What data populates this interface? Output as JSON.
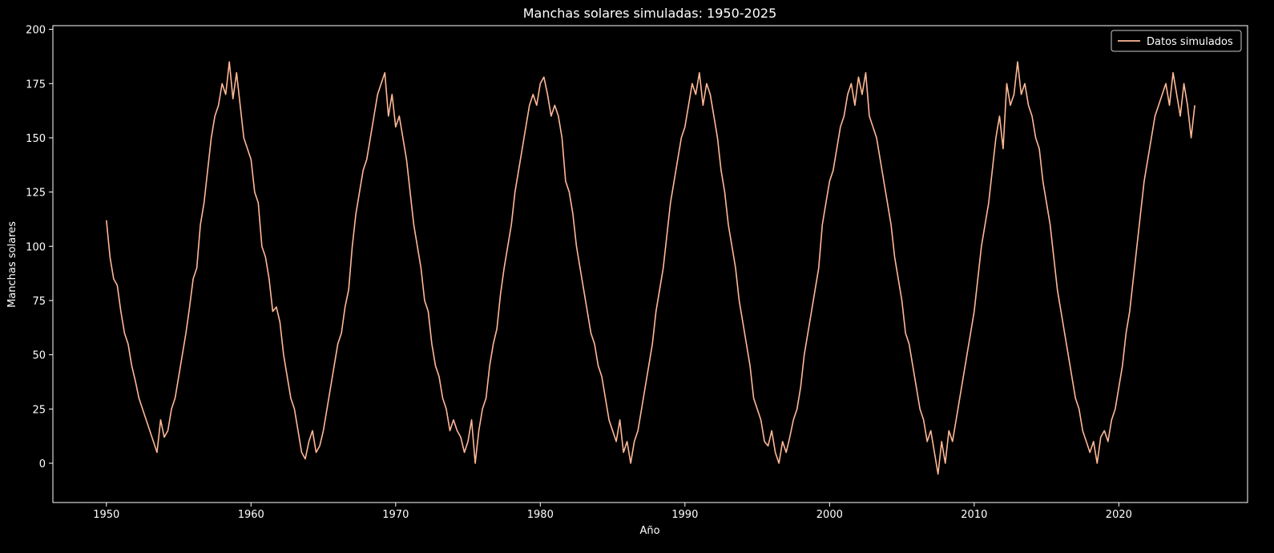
{
  "chart_data": {
    "type": "line",
    "title": "Manchas solares simuladas: 1950-2025",
    "x_label": "Año",
    "y_label": "Manchas solares",
    "x": [
      1950,
      1950.25,
      1950.5,
      1950.75,
      1951,
      1951.25,
      1951.5,
      1951.75,
      1952,
      1952.25,
      1952.5,
      1952.75,
      1953,
      1953.25,
      1953.5,
      1953.75,
      1954,
      1954.25,
      1954.5,
      1954.75,
      1955,
      1955.25,
      1955.5,
      1955.75,
      1956,
      1956.25,
      1956.5,
      1956.75,
      1957,
      1957.25,
      1957.5,
      1957.75,
      1958,
      1958.25,
      1958.5,
      1958.75,
      1959,
      1959.25,
      1959.5,
      1959.75,
      1960,
      1960.25,
      1960.5,
      1960.75,
      1961,
      1961.25,
      1961.5,
      1961.75,
      1962,
      1962.25,
      1962.5,
      1962.75,
      1963,
      1963.25,
      1963.5,
      1963.75,
      1964,
      1964.25,
      1964.5,
      1964.75,
      1965,
      1965.25,
      1965.5,
      1965.75,
      1966,
      1966.25,
      1966.5,
      1966.75,
      1967,
      1967.25,
      1967.5,
      1967.75,
      1968,
      1968.25,
      1968.5,
      1968.75,
      1969,
      1969.25,
      1969.5,
      1969.75,
      1970,
      1970.25,
      1970.5,
      1970.75,
      1971,
      1971.25,
      1971.5,
      1971.75,
      1972,
      1972.25,
      1972.5,
      1972.75,
      1973,
      1973.25,
      1973.5,
      1973.75,
      1974,
      1974.25,
      1974.5,
      1974.75,
      1975,
      1975.25,
      1975.5,
      1975.75,
      1976,
      1976.25,
      1976.5,
      1976.75,
      1977,
      1977.25,
      1977.5,
      1977.75,
      1978,
      1978.25,
      1978.5,
      1978.75,
      1979,
      1979.25,
      1979.5,
      1979.75,
      1980,
      1980.25,
      1980.5,
      1980.75,
      1981,
      1981.25,
      1981.5,
      1981.75,
      1982,
      1982.25,
      1982.5,
      1982.75,
      1983,
      1983.25,
      1983.5,
      1983.75,
      1984,
      1984.25,
      1984.5,
      1984.75,
      1985,
      1985.25,
      1985.5,
      1985.75,
      1986,
      1986.25,
      1986.5,
      1986.75,
      1987,
      1987.25,
      1987.5,
      1987.75,
      1988,
      1988.25,
      1988.5,
      1988.75,
      1989,
      1989.25,
      1989.5,
      1989.75,
      1990,
      1990.25,
      1990.5,
      1990.75,
      1991,
      1991.25,
      1991.5,
      1991.75,
      1992,
      1992.25,
      1992.5,
      1992.75,
      1993,
      1993.25,
      1993.5,
      1993.75,
      1994,
      1994.25,
      1994.5,
      1994.75,
      1995,
      1995.25,
      1995.5,
      1995.75,
      1996,
      1996.25,
      1996.5,
      1996.75,
      1997,
      1997.25,
      1997.5,
      1997.75,
      1998,
      1998.25,
      1998.5,
      1998.75,
      1999,
      1999.25,
      1999.5,
      1999.75,
      2000,
      2000.25,
      2000.5,
      2000.75,
      2001,
      2001.25,
      2001.5,
      2001.75,
      2002,
      2002.25,
      2002.5,
      2002.75,
      2003,
      2003.25,
      2003.5,
      2003.75,
      2004,
      2004.25,
      2004.5,
      2004.75,
      2005,
      2005.25,
      2005.5,
      2005.75,
      2006,
      2006.25,
      2006.5,
      2006.75,
      2007,
      2007.25,
      2007.5,
      2007.75,
      2008,
      2008.25,
      2008.5,
      2008.75,
      2009,
      2009.25,
      2009.5,
      2009.75,
      2010,
      2010.25,
      2010.5,
      2010.75,
      2011,
      2011.25,
      2011.5,
      2011.75,
      2012,
      2012.25,
      2012.5,
      2012.75,
      2013,
      2013.25,
      2013.5,
      2013.75,
      2014,
      2014.25,
      2014.5,
      2014.75,
      2015,
      2015.25,
      2015.5,
      2015.75,
      2016,
      2016.25,
      2016.5,
      2016.75,
      2017,
      2017.25,
      2017.5,
      2017.75,
      2018,
      2018.25,
      2018.5,
      2018.75,
      2019,
      2019.25,
      2019.5,
      2019.75,
      2020,
      2020.25,
      2020.5,
      2020.75,
      2021,
      2021.25,
      2021.5,
      2021.75,
      2022,
      2022.25,
      2022.5,
      2022.75,
      2023,
      2023.25,
      2023.5,
      2023.75,
      2024,
      2024.25,
      2024.5,
      2024.75,
      2025,
      2025.25
    ],
    "series": [
      {
        "name": "Datos simulados",
        "color": "#ffb896",
        "values": [
          112,
          95,
          85,
          82,
          70,
          60,
          55,
          45,
          38,
          30,
          25,
          20,
          15,
          10,
          5,
          20,
          12,
          15,
          25,
          30,
          40,
          50,
          60,
          72,
          85,
          90,
          110,
          120,
          135,
          150,
          160,
          165,
          175,
          170,
          185,
          168,
          180,
          165,
          150,
          145,
          140,
          125,
          120,
          100,
          95,
          85,
          70,
          72,
          65,
          50,
          40,
          30,
          25,
          15,
          5,
          2,
          10,
          15,
          5,
          8,
          15,
          25,
          35,
          45,
          55,
          60,
          72,
          80,
          100,
          115,
          125,
          135,
          140,
          150,
          160,
          170,
          175,
          180,
          160,
          170,
          155,
          160,
          150,
          140,
          125,
          110,
          100,
          90,
          75,
          70,
          55,
          45,
          40,
          30,
          25,
          15,
          20,
          15,
          12,
          5,
          10,
          20,
          0,
          15,
          25,
          30,
          45,
          55,
          62,
          78,
          90,
          100,
          110,
          125,
          135,
          145,
          155,
          165,
          170,
          165,
          175,
          178,
          170,
          160,
          165,
          160,
          150,
          130,
          125,
          115,
          100,
          90,
          80,
          70,
          60,
          55,
          45,
          40,
          30,
          20,
          15,
          10,
          20,
          5,
          10,
          0,
          10,
          15,
          25,
          35,
          45,
          55,
          70,
          80,
          90,
          105,
          120,
          130,
          140,
          150,
          155,
          165,
          175,
          170,
          180,
          165,
          175,
          170,
          160,
          150,
          135,
          125,
          110,
          100,
          90,
          75,
          65,
          55,
          45,
          30,
          25,
          20,
          10,
          8,
          15,
          5,
          0,
          10,
          5,
          12,
          20,
          25,
          35,
          50,
          60,
          70,
          80,
          90,
          110,
          120,
          130,
          135,
          145,
          155,
          160,
          170,
          175,
          165,
          178,
          170,
          180,
          160,
          155,
          150,
          140,
          130,
          120,
          110,
          95,
          85,
          75,
          60,
          55,
          45,
          35,
          25,
          20,
          10,
          15,
          5,
          -5,
          10,
          0,
          15,
          10,
          20,
          30,
          40,
          50,
          60,
          70,
          85,
          100,
          110,
          120,
          135,
          150,
          160,
          145,
          175,
          165,
          170,
          185,
          170,
          175,
          165,
          160,
          150,
          145,
          130,
          120,
          110,
          95,
          80,
          70,
          60,
          50,
          40,
          30,
          25,
          15,
          10,
          5,
          10,
          0,
          12,
          15,
          10,
          20,
          25,
          35,
          45,
          60,
          70,
          85,
          100,
          115,
          130,
          140,
          150,
          160,
          165,
          170,
          175,
          165,
          180,
          170,
          160,
          175,
          165,
          150,
          165
        ]
      }
    ],
    "xlim": [
      1946.3,
      2028.9
    ],
    "ylim": [
      -18.1,
      201.7
    ],
    "xticks": [
      1950,
      1960,
      1970,
      1980,
      1990,
      2000,
      2010,
      2020
    ],
    "yticks": [
      0,
      25,
      50,
      75,
      100,
      125,
      150,
      175,
      200
    ],
    "legend": "upper right"
  }
}
